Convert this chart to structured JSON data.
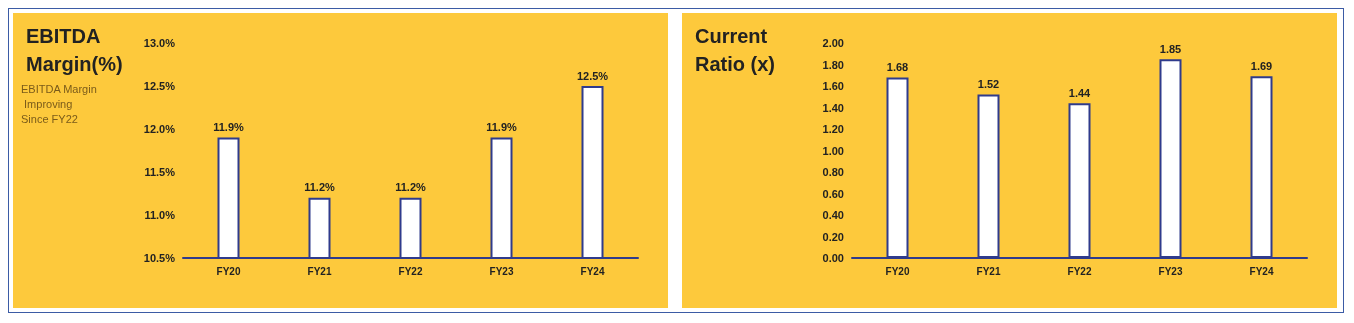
{
  "chart_data": [
    {
      "type": "bar",
      "title": "EBITDA Margin(%)",
      "annotations": [
        "EBITDA Margin Improving Since FY22"
      ],
      "categories": [
        "FY20",
        "FY21",
        "FY22",
        "FY23",
        "FY24"
      ],
      "series": [
        {
          "color": "#ffffff",
          "values": [
            11.9,
            11.2,
            11.2,
            11.9,
            12.5
          ],
          "value_labels": [
            "11.9%",
            "11.2%",
            "11.2%",
            "11.9%",
            "12.5%"
          ]
        }
      ],
      "ylim": [
        10.5,
        13.0
      ],
      "yticks": [
        {
          "value": 10.5,
          "label": "10.5%"
        },
        {
          "value": 11.0,
          "label": "11.0%"
        },
        {
          "value": 11.5,
          "label": "11.5%"
        },
        {
          "value": 12.0,
          "label": "12.0%"
        },
        {
          "value": 12.5,
          "label": "12.5%"
        },
        {
          "value": 13.0,
          "label": "13.0%"
        }
      ],
      "grid": false
    },
    {
      "type": "bar",
      "title": "Current Ratio (x)",
      "categories": [
        "FY20",
        "FY21",
        "FY22",
        "FY23",
        "FY24"
      ],
      "series": [
        {
          "color": "#ffffff",
          "values": [
            1.68,
            1.52,
            1.44,
            1.85,
            1.69
          ]
        }
      ],
      "data_labels": true,
      "ylim": [
        0,
        2.0
      ],
      "yticks": [
        {
          "value": 0,
          "label": "0.00"
        },
        {
          "value": 0.2,
          "label": "0.20"
        },
        {
          "value": 0.4,
          "label": "0.40"
        },
        {
          "value": 0.6,
          "label": "0.60"
        },
        {
          "value": 0.8,
          "label": "0.80"
        },
        {
          "value": 1.0,
          "label": "1.00"
        },
        {
          "value": 1.2,
          "label": "1.20"
        },
        {
          "value": 1.4,
          "label": "1.40"
        },
        {
          "value": 1.6,
          "label": "1.60"
        },
        {
          "value": 1.8,
          "label": "1.80"
        },
        {
          "value": 2.0,
          "label": "2.00"
        }
      ],
      "grid": false
    }
  ]
}
